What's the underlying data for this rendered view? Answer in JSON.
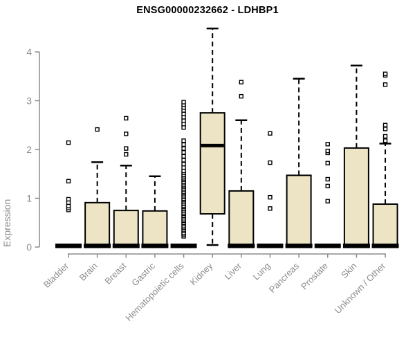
{
  "chart_data": {
    "type": "boxplot",
    "title": "ENSG00000232662 - LDHBP1",
    "ylabel": "Expression",
    "xlabel": "",
    "ylim": [
      0,
      4
    ],
    "yticks": [
      0,
      1,
      2,
      3,
      4
    ],
    "grid": false,
    "legend": "none",
    "colors": {
      "box_fill": "#ECE4C4",
      "box_border": "#000000",
      "median": "#000000",
      "whisker": "#000000",
      "outlier_fill": "#FFFFFF",
      "outlier_border": "#000000",
      "axis": "#8C8C8C",
      "tick_label": "#8C8C8C",
      "title": "#000000",
      "background": "#FFFFFF"
    },
    "categories": [
      "Bladder",
      "Brain",
      "Breast",
      "Gastric",
      "Hematopoietic cells",
      "Kidney",
      "Liver",
      "Lung",
      "Pancreas",
      "Prostate",
      "Skin",
      "Unknown / Other"
    ],
    "boxes": [
      {
        "category": "Bladder",
        "q1": 0,
        "median": 0,
        "q3": 0,
        "whisker_low": 0,
        "whisker_high": 0,
        "outliers": [
          0.76,
          0.8,
          0.84,
          0.91,
          0.98,
          1.35,
          2.14
        ]
      },
      {
        "category": "Brain",
        "q1": 0,
        "median": 0,
        "q3": 0.91,
        "whisker_low": 0,
        "whisker_high": 1.74,
        "outliers": [
          2.41
        ]
      },
      {
        "category": "Breast",
        "q1": 0,
        "median": 0,
        "q3": 0.75,
        "whisker_low": 0,
        "whisker_high": 1.67,
        "outliers": [
          1.9,
          2.02,
          2.32,
          2.64
        ]
      },
      {
        "category": "Gastric",
        "q1": 0,
        "median": 0,
        "q3": 0.74,
        "whisker_low": 0,
        "whisker_high": 1.45,
        "outliers": []
      },
      {
        "category": "Hematopoietic cells",
        "q1": 0,
        "median": 0,
        "q3": 0,
        "whisker_low": 0,
        "whisker_high": 0,
        "outliers": [
          0.22,
          0.26,
          0.29,
          0.33,
          0.36,
          0.4,
          0.43,
          0.47,
          0.5,
          0.54,
          0.57,
          0.61,
          0.64,
          0.68,
          0.71,
          0.75,
          0.78,
          0.82,
          0.85,
          0.89,
          0.92,
          0.96,
          0.99,
          1.03,
          1.06,
          1.1,
          1.13,
          1.17,
          1.2,
          1.24,
          1.27,
          1.31,
          1.34,
          1.38,
          1.41,
          1.45,
          1.48,
          1.52,
          1.56,
          1.63,
          1.7,
          1.78,
          1.86,
          1.94,
          2.02,
          2.1,
          2.18,
          2.45,
          2.52,
          2.59,
          2.66,
          2.73,
          2.8,
          2.86,
          2.92,
          2.97
        ]
      },
      {
        "category": "Kidney",
        "q1": 0.68,
        "median": 2.08,
        "q3": 2.75,
        "whisker_low": 0.04,
        "whisker_high": 4.48,
        "outliers": []
      },
      {
        "category": "Liver",
        "q1": 0,
        "median": 0,
        "q3": 1.15,
        "whisker_low": 0,
        "whisker_high": 2.6,
        "outliers": [
          3.09,
          3.38
        ]
      },
      {
        "category": "Lung",
        "q1": 0,
        "median": 0,
        "q3": 0,
        "whisker_low": 0,
        "whisker_high": 0,
        "outliers": [
          0.79,
          1.02,
          1.73,
          2.33
        ]
      },
      {
        "category": "Pancreas",
        "q1": 0,
        "median": 0,
        "q3": 1.47,
        "whisker_low": 0,
        "whisker_high": 3.45,
        "outliers": []
      },
      {
        "category": "Prostate",
        "q1": 0,
        "median": 0,
        "q3": 0,
        "whisker_low": 0,
        "whisker_high": 0,
        "outliers": [
          0.94,
          1.25,
          1.39,
          1.72,
          1.93,
          1.97,
          2.11
        ]
      },
      {
        "category": "Skin",
        "q1": 0,
        "median": 0,
        "q3": 2.03,
        "whisker_low": 0,
        "whisker_high": 3.72,
        "outliers": []
      },
      {
        "category": "Unknown / Other",
        "q1": 0,
        "median": 0,
        "q3": 0.88,
        "whisker_low": 0,
        "whisker_high": 2.12,
        "outliers": [
          2.18,
          2.27,
          2.42,
          2.5,
          3.33,
          3.52,
          3.55
        ]
      }
    ]
  }
}
